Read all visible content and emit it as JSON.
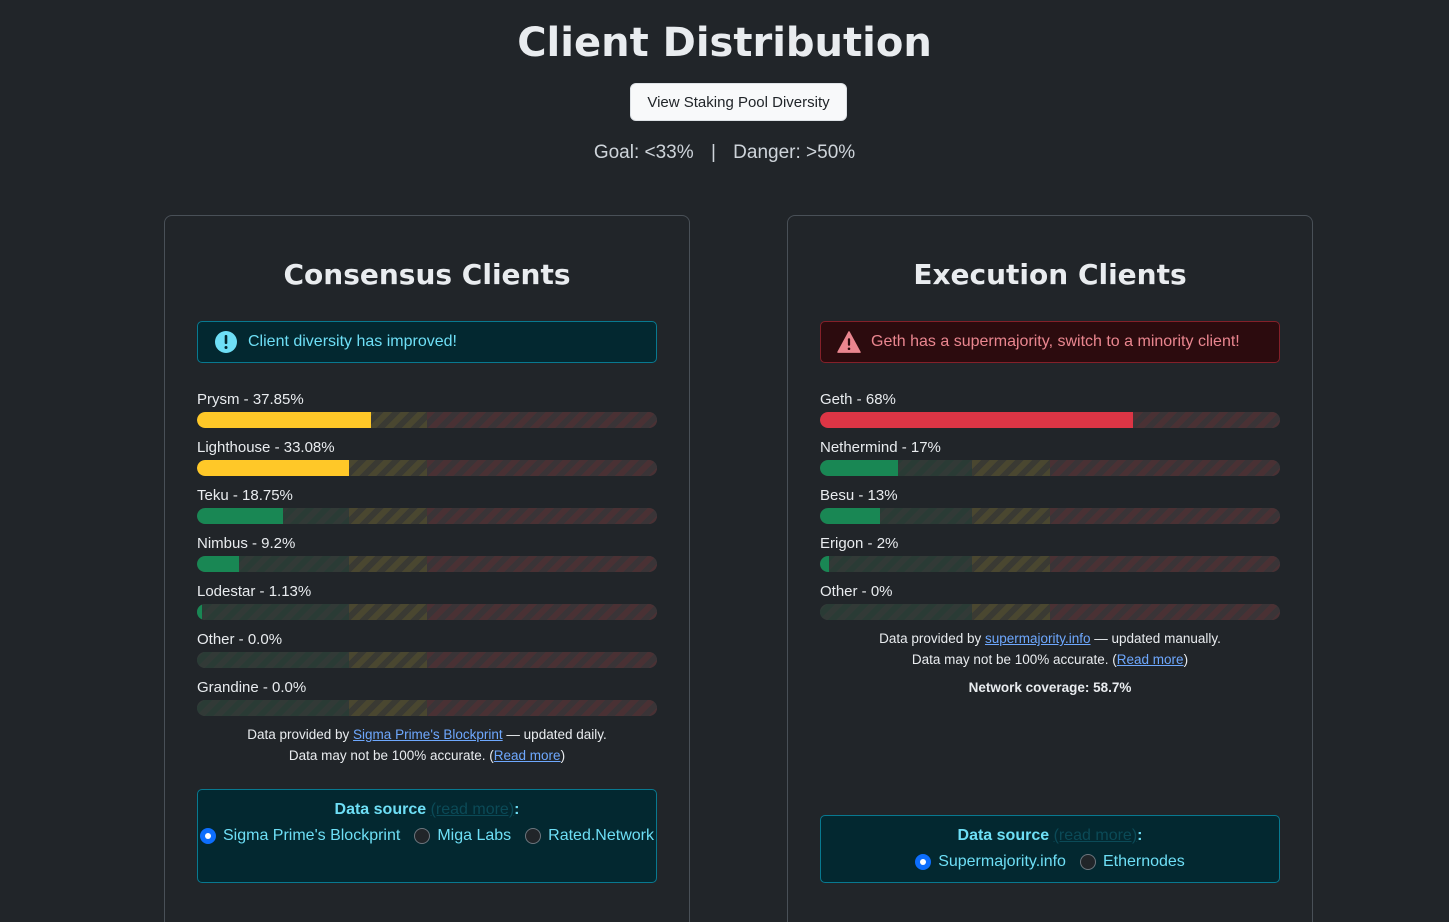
{
  "page": {
    "title": "Client Distribution",
    "pool_button": "View Staking Pool Diversity",
    "goal": "Goal: <33%",
    "separator": "|",
    "danger": "Danger: >50%"
  },
  "colors": {
    "yellow": "#ffc828",
    "green": "#198754",
    "red": "#dc3545"
  },
  "consensus": {
    "title": "Consensus Clients",
    "alert": "Client diversity has improved!",
    "alert_icon": "info-circle-icon",
    "clients": [
      {
        "label": "Prysm - 37.85%",
        "percent": 37.85,
        "status": "warning"
      },
      {
        "label": "Lighthouse - 33.08%",
        "percent": 33.08,
        "status": "warning"
      },
      {
        "label": "Teku - 18.75%",
        "percent": 18.75,
        "status": "good"
      },
      {
        "label": "Nimbus - 9.2%",
        "percent": 9.2,
        "status": "good"
      },
      {
        "label": "Lodestar - 1.13%",
        "percent": 1.13,
        "status": "good"
      },
      {
        "label": "Other - 0.0%",
        "percent": 0.0,
        "status": "good"
      },
      {
        "label": "Grandine - 0.0%",
        "percent": 0.0,
        "status": "good"
      }
    ],
    "note_prefix": "Data provided by ",
    "note_link": "Sigma Prime's Blockprint",
    "note_suffix": " — updated daily.",
    "note_line2_prefix": "Data may not be 100% accurate. (",
    "note_line2_link": "Read more",
    "note_line2_suffix": ")",
    "source_label": "Data source",
    "source_link": "(read more)",
    "source_colon": ":",
    "sources": [
      {
        "label": "Sigma Prime's Blockprint",
        "selected": true
      },
      {
        "label": "Miga Labs",
        "selected": false
      },
      {
        "label": "Rated.Network",
        "selected": false
      }
    ]
  },
  "execution": {
    "title": "Execution Clients",
    "alert": "Geth has a supermajority, switch to a minority client!",
    "alert_icon": "warning-triangle-icon",
    "clients": [
      {
        "label": "Geth - 68%",
        "percent": 68,
        "status": "danger"
      },
      {
        "label": "Nethermind - 17%",
        "percent": 17,
        "status": "good"
      },
      {
        "label": "Besu - 13%",
        "percent": 13,
        "status": "good"
      },
      {
        "label": "Erigon - 2%",
        "percent": 2,
        "status": "good"
      },
      {
        "label": "Other - 0%",
        "percent": 0,
        "status": "good"
      }
    ],
    "note_prefix": "Data provided by ",
    "note_link": "supermajority.info",
    "note_suffix": " — updated manually.",
    "note_line2_prefix": "Data may not be 100% accurate. (",
    "note_line2_link": "Read more",
    "note_line2_suffix": ")",
    "coverage": "Network coverage: 58.7%",
    "source_label": "Data source",
    "source_link": "(read more)",
    "source_colon": ":",
    "sources": [
      {
        "label": "Supermajority.info",
        "selected": true
      },
      {
        "label": "Ethernodes",
        "selected": false
      }
    ]
  }
}
